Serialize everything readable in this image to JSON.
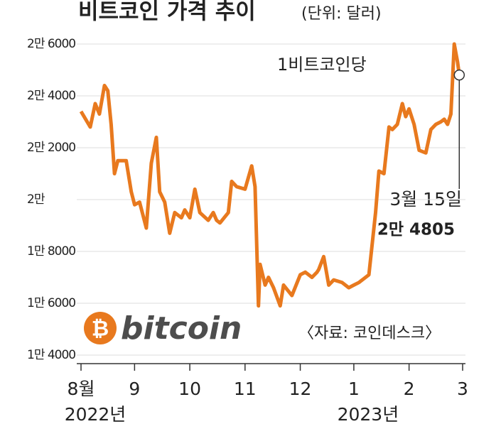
{
  "chart_data": {
    "type": "line",
    "title": "비트코인 가격 추이",
    "subtitle": "(단위: 달러)",
    "unit_note": "1비트코인당",
    "highlight_date": "3월 15일",
    "highlight_label": "2만 4805",
    "source": "〈자료: 코인데스크〉",
    "logo_symbol": "₿",
    "logo": "bitcoin",
    "year_labels": [
      "2022년",
      "2023년"
    ],
    "x": [
      0,
      5.5,
      8.5,
      11,
      14,
      16,
      18,
      20,
      22,
      27,
      30,
      32,
      35,
      39,
      42,
      45,
      47,
      50,
      53,
      56,
      60,
      62,
      65,
      68,
      71,
      76,
      79,
      81,
      83,
      88,
      90,
      93,
      98,
      102,
      104,
      106,
      107,
      110,
      112,
      115,
      119,
      121,
      126,
      131,
      134,
      138,
      141,
      142,
      145,
      148,
      151,
      156,
      160,
      163,
      166,
      172,
      176,
      178,
      181,
      184,
      186,
      189,
      192,
      194,
      196,
      199,
      202,
      206,
      209,
      212,
      215,
      217,
      219,
      221,
      223,
      225,
      226
    ],
    "series": [
      {
        "name": "비트코인",
        "color": "#e8791e",
        "values": [
          23400,
          22800,
          23700,
          23300,
          24400,
          24200,
          22900,
          21000,
          21500,
          21500,
          20300,
          19800,
          19900,
          18900,
          21400,
          22400,
          20300,
          19900,
          18700,
          19500,
          19300,
          19600,
          19300,
          20400,
          19500,
          19200,
          19500,
          19200,
          19100,
          19500,
          20700,
          20500,
          20400,
          21300,
          20500,
          15900,
          17500,
          16700,
          17000,
          16600,
          15900,
          16700,
          16300,
          17100,
          17200,
          17000,
          17200,
          17300,
          17800,
          16700,
          16900,
          16800,
          16600,
          16700,
          16800,
          17100,
          19500,
          21100,
          21000,
          22800,
          22700,
          22900,
          23700,
          23200,
          23500,
          22900,
          21900,
          21800,
          22700,
          22900,
          23000,
          23100,
          22900,
          23300,
          26000,
          25300,
          24805
        ]
      }
    ],
    "xlim": [
      0,
      228
    ],
    "xticks": [
      {
        "value": 0,
        "label": "8월"
      },
      {
        "value": 32,
        "label": "9"
      },
      {
        "value": 65,
        "label": "10"
      },
      {
        "value": 98,
        "label": "11"
      },
      {
        "value": 131,
        "label": "12"
      },
      {
        "value": 163,
        "label": "1"
      },
      {
        "value": 196,
        "label": "2"
      },
      {
        "value": 228,
        "label": "3"
      }
    ],
    "ylim": [
      14000,
      26000
    ],
    "yticks": [
      {
        "value": 14000,
        "label": "1만 4000"
      },
      {
        "value": 16000,
        "label": "1만 6000"
      },
      {
        "value": 18000,
        "label": "1만 8000"
      },
      {
        "value": 20000,
        "label": "2만"
      },
      {
        "value": 22000,
        "label": "2만 2000"
      },
      {
        "value": 24000,
        "label": "2만 4000"
      },
      {
        "value": 26000,
        "label": "2만 6000"
      }
    ],
    "grid": true
  }
}
